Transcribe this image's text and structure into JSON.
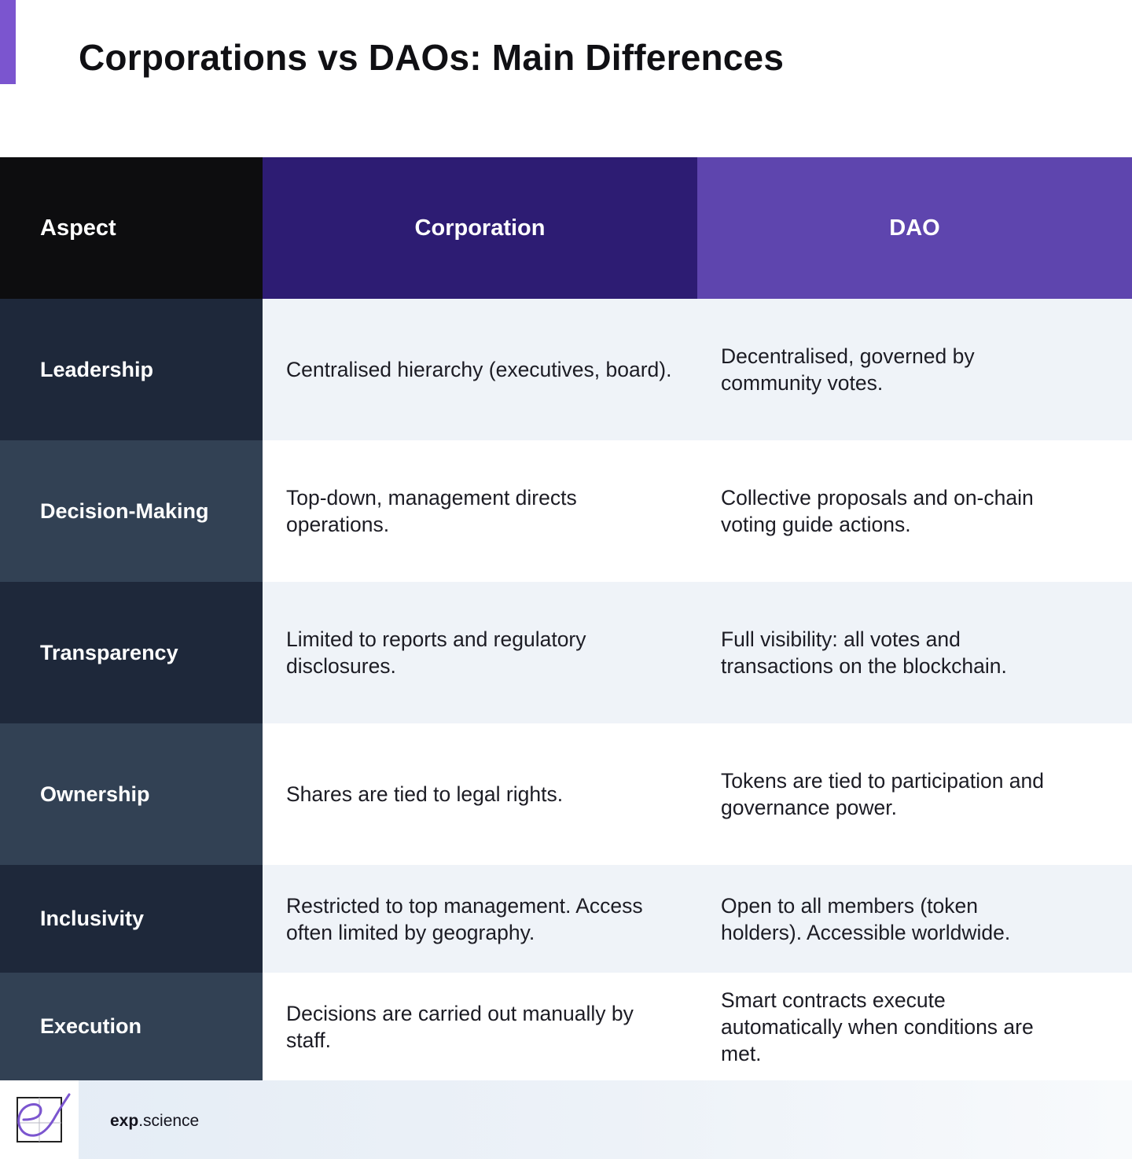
{
  "title": "Corporations vs DAOs: Main Differences",
  "colors": {
    "accent": "#7b55cf",
    "header_aspect": "#0d0d0f",
    "header_corporation": "#2d1c73",
    "header_dao": "#5e45ae",
    "aspect_dark": "#1e283a",
    "aspect_light": "#324154",
    "row_shade": "#eff3f8"
  },
  "table": {
    "headers": {
      "aspect": "Aspect",
      "corporation": "Corporation",
      "dao": "DAO"
    },
    "rows": [
      {
        "aspect": "Leadership",
        "corporation": "Centralised hierarchy (executives, board).",
        "dao": "Decentralised, governed by community votes."
      },
      {
        "aspect": "Decision-Making",
        "corporation": "Top-down, management directs operations.",
        "dao": "Collective proposals and on-chain voting guide actions."
      },
      {
        "aspect": "Transparency",
        "corporation": "Limited to reports and regulatory disclosures.",
        "dao": "Full visibility: all votes and transactions on the blockchain."
      },
      {
        "aspect": "Ownership",
        "corporation": "Shares are tied to legal rights.",
        "dao": "Tokens are tied to participation and governance power."
      },
      {
        "aspect": "Inclusivity",
        "corporation": "Restricted to top management. Access often limited by geography.",
        "dao": "Open to all members (token holders). Accessible worldwide."
      },
      {
        "aspect": "Execution",
        "corporation": "Decisions are carried out manually by staff.",
        "dao": "Smart contracts execute automatically when conditions are met."
      }
    ]
  },
  "footer": {
    "logo_icon": "exp-science-logo-icon",
    "brand_bold": "exp",
    "brand_rest": ".science"
  }
}
